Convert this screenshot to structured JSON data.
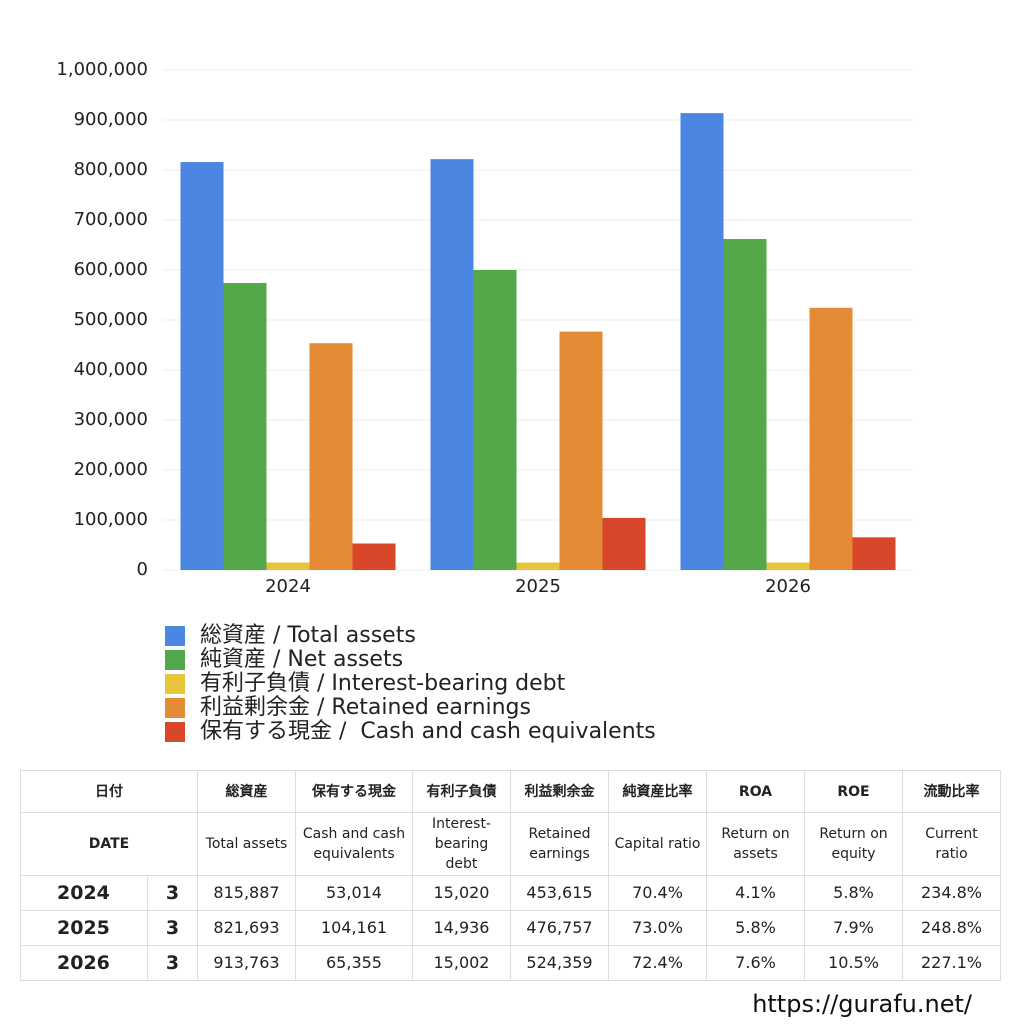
{
  "chart_data": {
    "type": "bar",
    "categories": [
      "2024",
      "2025",
      "2026"
    ],
    "series": [
      {
        "name": "総資産 / Total assets",
        "color": "#4a86e2",
        "values": [
          815887,
          821693,
          913763
        ]
      },
      {
        "name": "純資産 / Net assets",
        "color": "#55a84a",
        "values": [
          574000,
          600000,
          662000
        ]
      },
      {
        "name": "有利子負債 / Interest-bearing debt",
        "color": "#e6c53c",
        "values": [
          15020,
          14936,
          15002
        ]
      },
      {
        "name": "利益剰余金 / Retained earnings",
        "color": "#e48b36",
        "values": [
          453615,
          476757,
          524359
        ]
      },
      {
        "name": "保有する現金 /  Cash and cash equivalents",
        "color": "#d9472b",
        "values": [
          53014,
          104161,
          65355
        ]
      }
    ],
    "ylim": [
      0,
      1000000
    ],
    "yticks": [
      0,
      {
        "value": 100000,
        "label": "100,000"
      },
      {
        "value": 200000,
        "label": "200,000"
      },
      {
        "value": 300000,
        "label": "300,000"
      },
      {
        "value": 400000,
        "label": "400,000"
      },
      {
        "value": 500000,
        "label": "500,000"
      },
      {
        "value": 600000,
        "label": "600,000"
      },
      {
        "value": 700000,
        "label": "700,000"
      },
      {
        "value": 800000,
        "label": "800,000"
      },
      {
        "value": 900000,
        "label": "900,000"
      },
      {
        "value": 1000000,
        "label": "1,000,000"
      }
    ],
    "grid": true
  },
  "table": {
    "header": [
      [
        "日付",
        "総資産",
        "保有する現金",
        "有利子負債",
        "利益剰余金",
        "純資産比率",
        "ROA",
        "ROE",
        "流動比率"
      ],
      [
        "DATE",
        "Total assets",
        "Cash and cash equivalents",
        "Interest-bearing debt",
        "Retained earnings",
        "Capital ratio",
        "Return on assets",
        "Return on equity",
        "Current ratio"
      ]
    ],
    "rows": [
      [
        "2024",
        "3",
        "815,887",
        "53,014",
        "15,020",
        "453,615",
        "70.4%",
        "4.1%",
        "5.8%",
        "234.8%"
      ],
      [
        "2025",
        "3",
        "821,693",
        "104,161",
        "14,936",
        "476,757",
        "73.0%",
        "5.8%",
        "7.9%",
        "248.8%"
      ],
      [
        "2026",
        "3",
        "913,763",
        "65,355",
        "15,002",
        "524,359",
        "72.4%",
        "7.6%",
        "10.5%",
        "227.1%"
      ]
    ]
  },
  "footer": "https://gurafu.net/"
}
